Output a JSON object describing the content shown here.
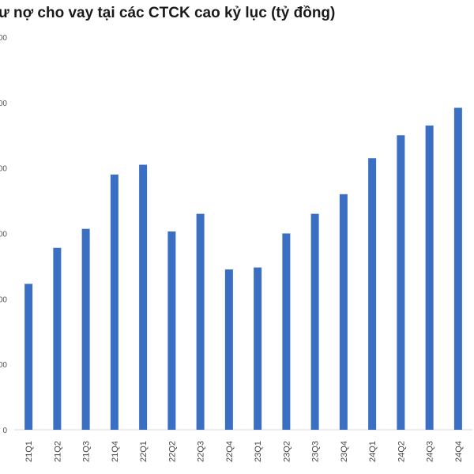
{
  "chart_data": {
    "type": "bar",
    "title": "ư nợ cho vay tại các CTCK cao kỷ lục (tỷ đồng)",
    "xlabel": "",
    "ylabel": "",
    "categories": [
      "21Q1",
      "21Q2",
      "21Q3",
      "21Q4",
      "22Q1",
      "22Q2",
      "22Q3",
      "22Q4",
      "23Q1",
      "23Q2",
      "23Q3",
      "23Q4",
      "24Q1",
      "24Q2",
      "24Q3",
      "24Q4"
    ],
    "values": [
      223000,
      278000,
      307000,
      390000,
      405000,
      303000,
      330000,
      245000,
      248000,
      300000,
      330000,
      360000,
      415000,
      450000,
      465000,
      492000
    ],
    "yticks": [
      "0",
      "00",
      "00",
      "00",
      "00",
      "00",
      "00"
    ],
    "ylim": [
      0,
      600000
    ],
    "grid": false,
    "bar_color": "#3a6fc4",
    "axis_color": "#d9d9d9"
  }
}
